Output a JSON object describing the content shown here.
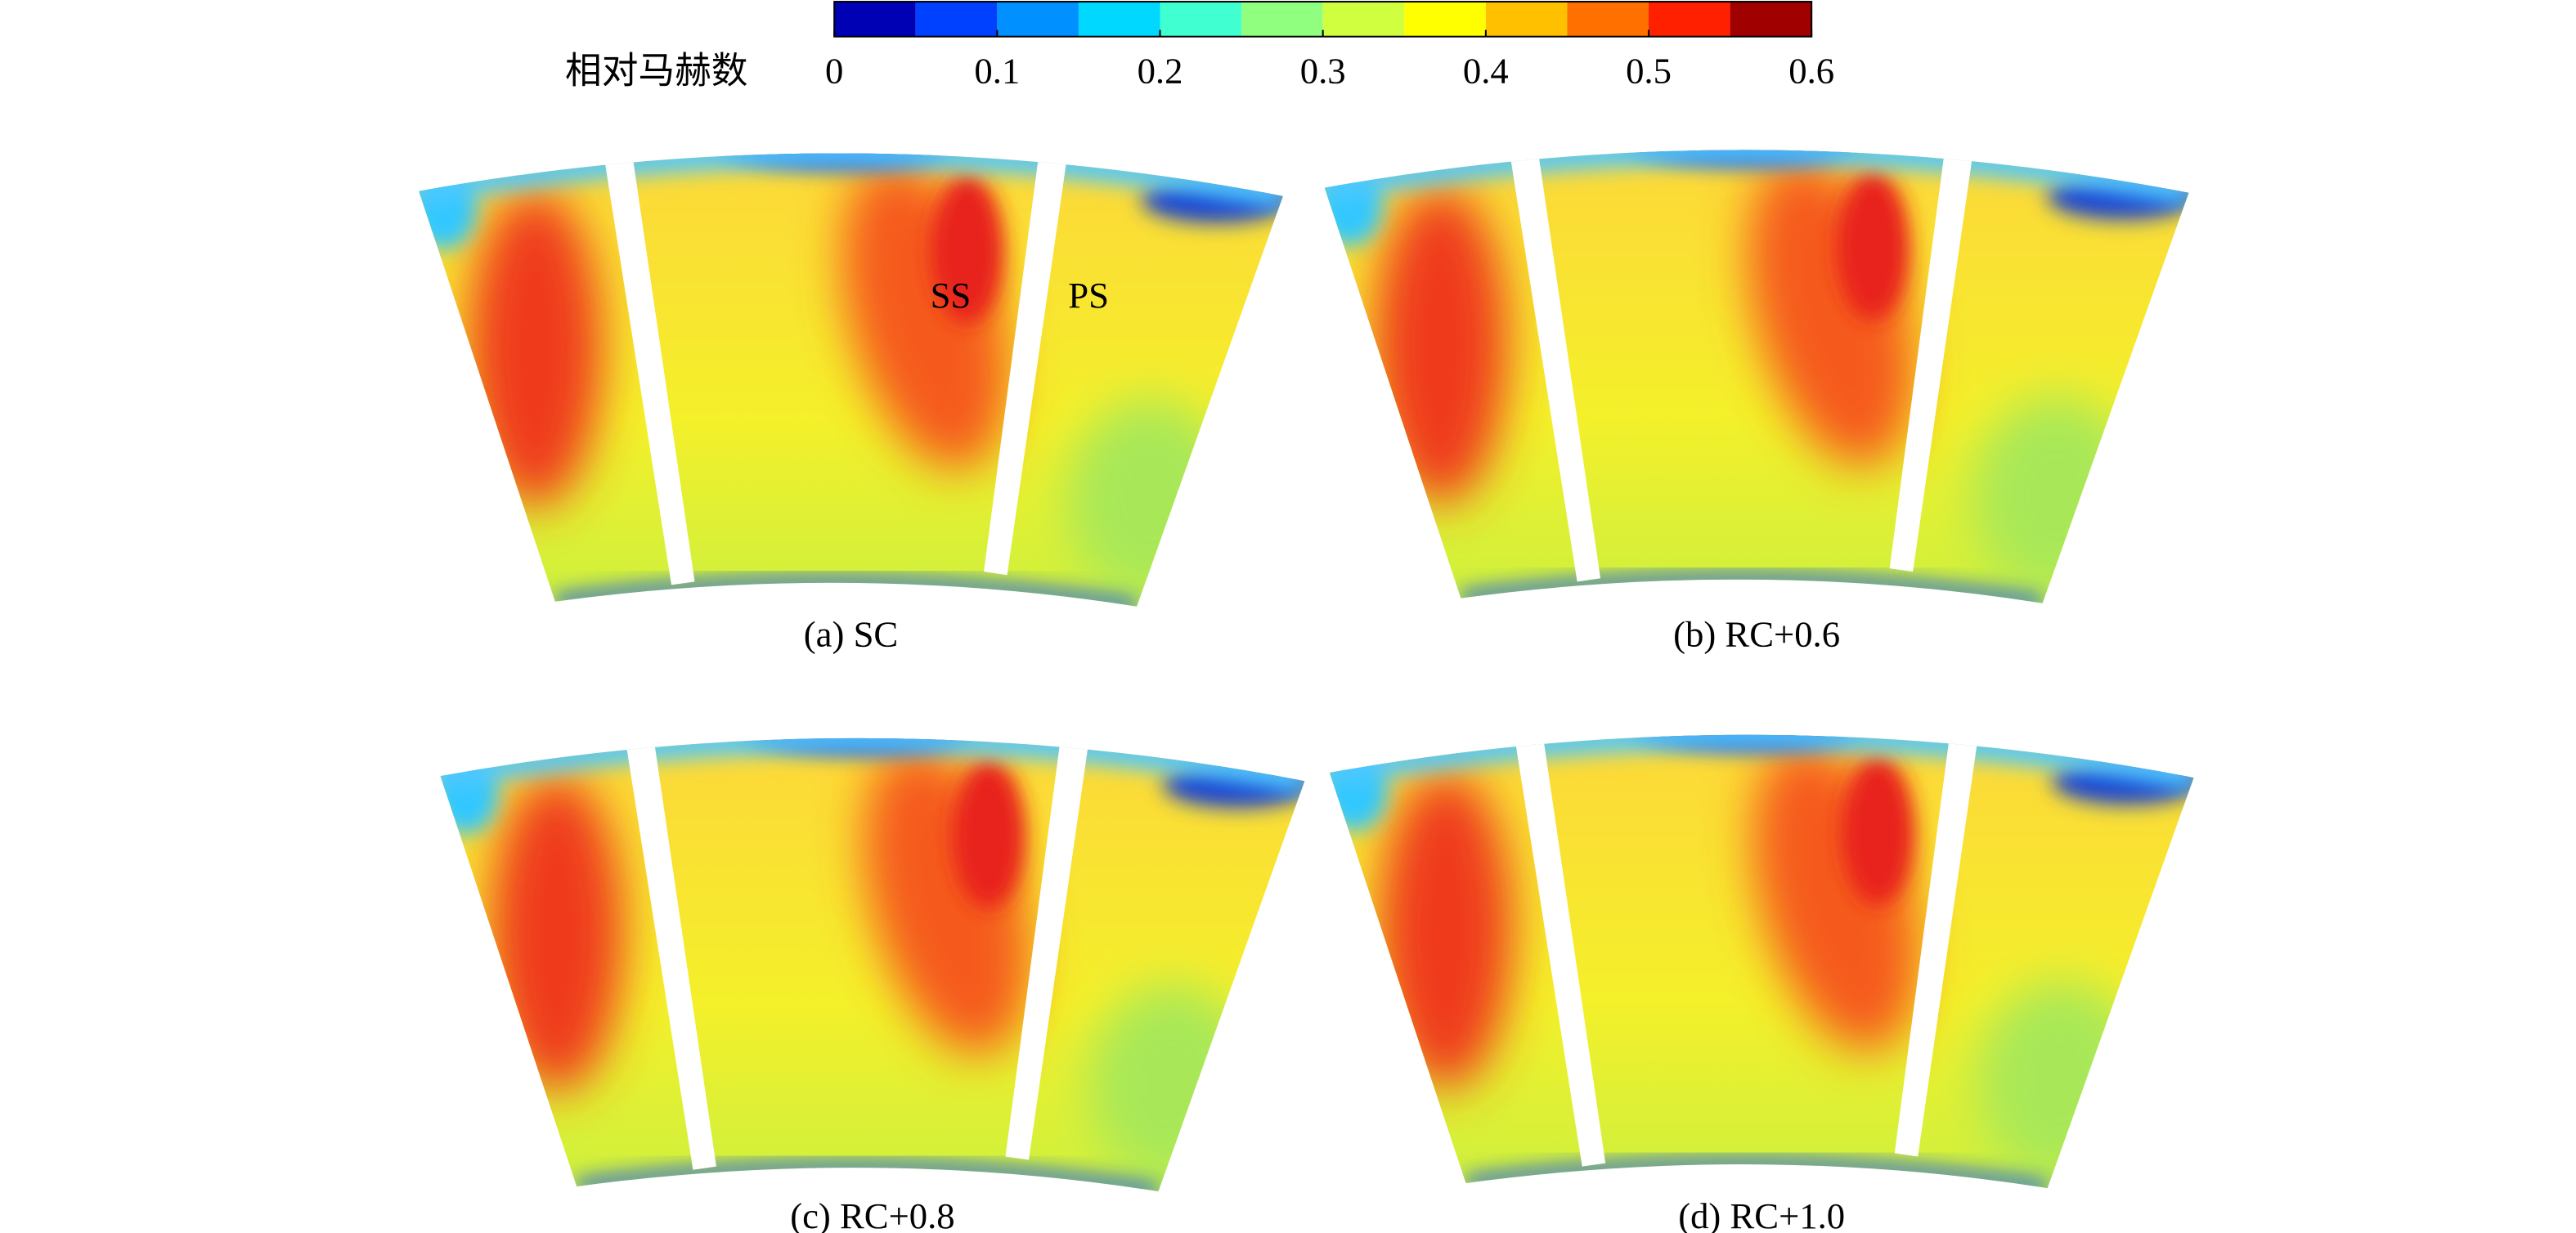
{
  "colorbar": {
    "label": "相对马赫数",
    "ticks": [
      0,
      0.1,
      0.2,
      0.3,
      0.4,
      0.5,
      0.6
    ]
  },
  "annotations": {
    "suction_side": "SS",
    "pressure_side": "PS"
  },
  "panels": [
    {
      "caption": "(a) SC"
    },
    {
      "caption": "(b) RC+0.6"
    },
    {
      "caption": "(c) RC+0.8"
    },
    {
      "caption": "(d) RC+1.0"
    }
  ]
}
